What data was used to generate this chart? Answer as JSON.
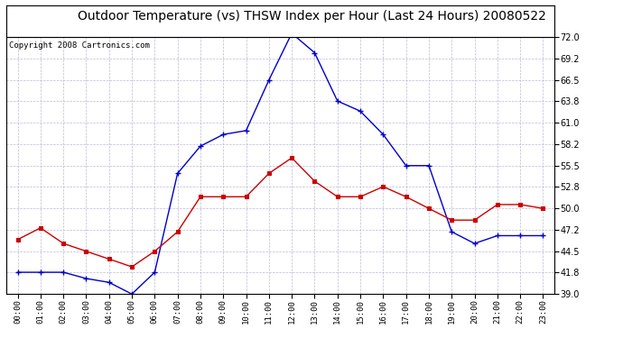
{
  "title": "Outdoor Temperature (vs) THSW Index per Hour (Last 24 Hours) 20080522",
  "copyright": "Copyright 2008 Cartronics.com",
  "hours": [
    "00:00",
    "01:00",
    "02:00",
    "03:00",
    "04:00",
    "05:00",
    "06:00",
    "07:00",
    "08:00",
    "09:00",
    "10:00",
    "11:00",
    "12:00",
    "13:00",
    "14:00",
    "15:00",
    "16:00",
    "17:00",
    "18:00",
    "19:00",
    "20:00",
    "21:00",
    "22:00",
    "23:00"
  ],
  "temp": [
    46.0,
    47.5,
    45.5,
    44.5,
    43.5,
    42.5,
    44.5,
    47.0,
    51.5,
    51.5,
    51.5,
    54.5,
    56.5,
    53.5,
    51.5,
    51.5,
    52.8,
    51.5,
    50.0,
    48.5,
    48.5,
    50.5,
    50.5,
    50.0
  ],
  "thsw": [
    41.8,
    41.8,
    41.8,
    41.0,
    40.5,
    39.0,
    41.8,
    54.5,
    58.0,
    59.5,
    60.0,
    66.5,
    72.5,
    70.0,
    63.8,
    62.5,
    59.5,
    55.5,
    55.5,
    47.0,
    45.5,
    46.5,
    46.5,
    46.5
  ],
  "ylim": [
    39.0,
    72.0
  ],
  "yticks": [
    39.0,
    41.8,
    44.5,
    47.2,
    50.0,
    52.8,
    55.5,
    58.2,
    61.0,
    63.8,
    66.5,
    69.2,
    72.0
  ],
  "temp_color": "#cc0000",
  "thsw_color": "#0000cc",
  "bg_color": "#ffffff",
  "plot_bg": "#ffffff",
  "grid_color": "#aaaacc",
  "title_color": "#000000",
  "title_fontsize": 10,
  "copyright_fontsize": 6.5
}
